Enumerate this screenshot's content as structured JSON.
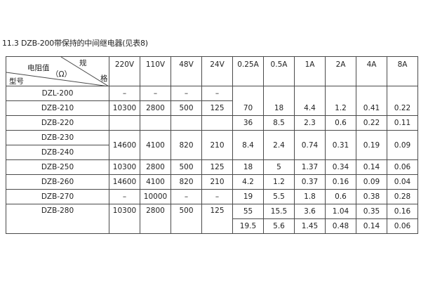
{
  "title": "11.3 DZB-200带保持的中间继电器(见表8)",
  "header": {
    "corner_spec_top": "规",
    "corner_resistance": "电阻值",
    "corner_unit": "（Ω）",
    "corner_spec_right": "格",
    "corner_model": "型号",
    "columns": [
      "220V",
      "110V",
      "48V",
      "24V",
      "0.25A",
      "0.5A",
      "1A",
      "2A",
      "4A",
      "8A"
    ]
  },
  "models": [
    "DZL-200",
    "DZB-210",
    "DZB-220",
    "DZB-230",
    "DZB-240",
    "DZB-250",
    "DZB-260",
    "DZB-270",
    "DZB-280"
  ],
  "voltage_groups": [
    [
      "–",
      "–",
      "–",
      "–"
    ],
    [
      "10300",
      "2800",
      "500",
      "125"
    ],
    [
      "",
      "",
      "",
      ""
    ],
    [
      "14600",
      "4100",
      "820",
      "210"
    ],
    [
      "10300",
      "2800",
      "500",
      "125"
    ],
    [
      "14600",
      "4100",
      "820",
      "210"
    ],
    [
      "–",
      "10000",
      "–",
      "–"
    ],
    [
      "10300",
      "2800",
      "500",
      "125"
    ]
  ],
  "current_groups": [
    [
      "70",
      "18",
      "4.4",
      "1.2",
      "0.41",
      "0.22"
    ],
    [
      "36",
      "8.5",
      "2.3",
      "0.6",
      "0.22",
      "0.11"
    ],
    [
      "8.4",
      "2.4",
      "0.74",
      "0.31",
      "0.19",
      "0.09"
    ],
    [
      "18",
      "5",
      "1.37",
      "0.34",
      "0.14",
      "0.06"
    ],
    [
      "4.2",
      "1.2",
      "0.37",
      "0.16",
      "0.09",
      "0.04"
    ],
    [
      "19",
      "5.5",
      "1.8",
      "0.6",
      "0.38",
      "0.28"
    ],
    [
      "55",
      "15.5",
      "3.6",
      "1.04",
      "0.35",
      "0.16"
    ],
    [
      "19.5",
      "5.6",
      "1.45",
      "0.48",
      "0.14",
      "0.06"
    ]
  ]
}
